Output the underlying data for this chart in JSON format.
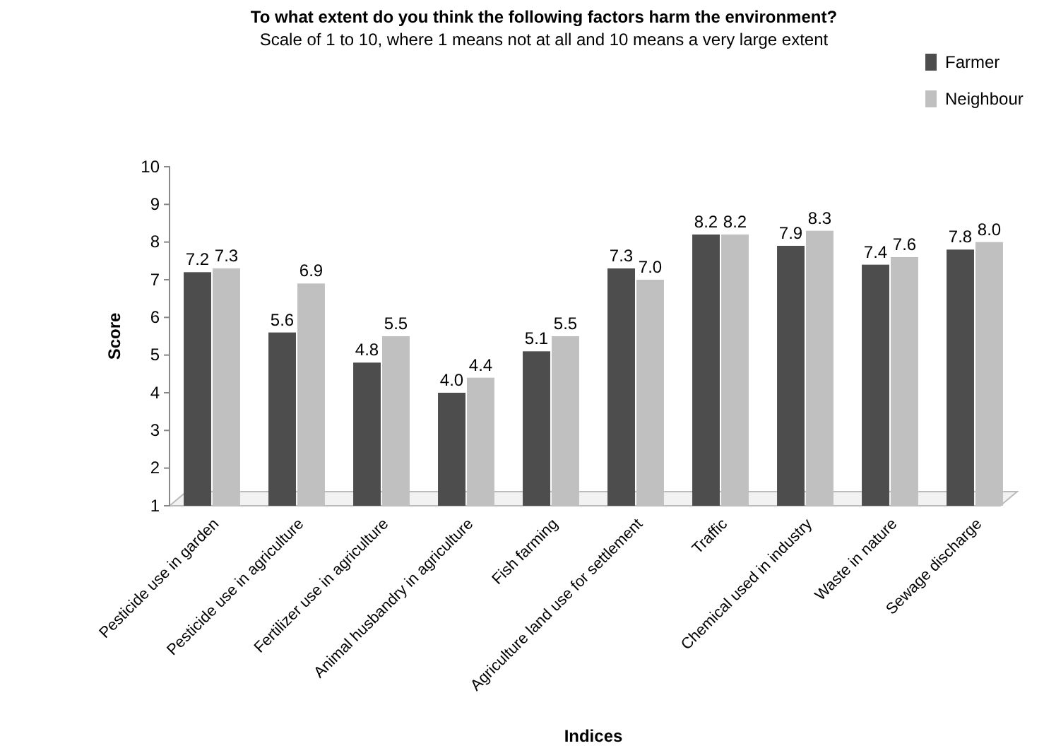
{
  "chart_data": {
    "type": "bar",
    "title": "To what extent do you think the following factors harm the environment?",
    "subtitle": "Scale of 1 to 10, where 1 means not at all and 10 means a very large extent",
    "xlabel": "Indices",
    "ylabel": "Score",
    "categories": [
      "Pesticide use in garden",
      "Pesticide use in agriculture",
      "Fertilizer use in agriculture",
      "Animal husbandry in agriculture",
      "Fish farming",
      "Agriculture land use for settlement",
      "Traffic",
      "Chemical used in industry",
      "Waste in nature",
      "Sewage discharge"
    ],
    "series": [
      {
        "name": "Farmer",
        "color": "#4d4d4d",
        "values": [
          7.2,
          5.6,
          4.8,
          4.0,
          5.1,
          7.3,
          8.2,
          7.9,
          7.4,
          7.8
        ],
        "value_labels": [
          "7.2",
          "5.6",
          "4.8",
          "4.0",
          "5.1",
          "7.3",
          "8.2",
          "7.9",
          "7.4",
          "7.8"
        ]
      },
      {
        "name": "Neighbour",
        "color": "#c0c0c0",
        "values": [
          7.3,
          6.9,
          5.5,
          4.4,
          5.5,
          7.0,
          8.2,
          8.3,
          7.6,
          8.0
        ],
        "value_labels": [
          "7.3",
          "6.9",
          "5.5",
          "4.4",
          "5.5",
          "7.0",
          "8.2",
          "8.3",
          "7.6",
          "8.0"
        ]
      }
    ],
    "ylim": [
      1,
      10
    ],
    "yticks": [
      1,
      2,
      3,
      4,
      5,
      6,
      7,
      8,
      9,
      10
    ],
    "grid": false,
    "legend": "top right"
  }
}
